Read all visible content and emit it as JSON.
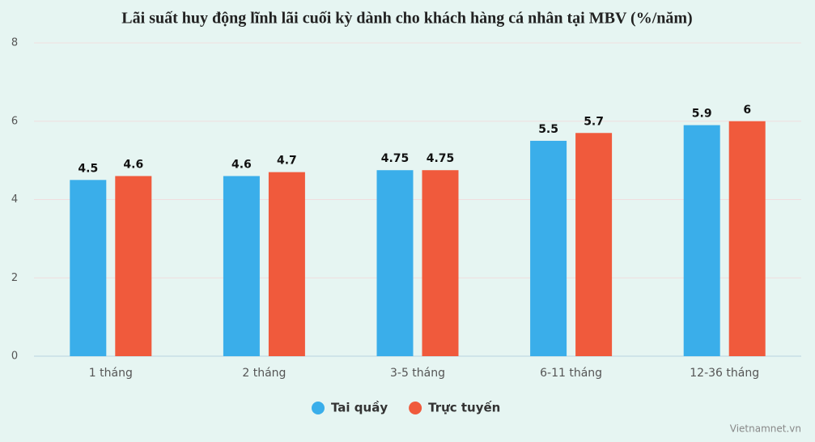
{
  "chart_data": {
    "type": "bar",
    "title": "Lãi suất huy động lĩnh lãi cuối kỳ dành cho khách hàng cá nhân tại MBV (%/năm)",
    "categories": [
      "1 tháng",
      "2 tháng",
      "3-5 tháng",
      "6-11 tháng",
      "12-36 tháng"
    ],
    "series": [
      {
        "name": "Tai quầy",
        "color": "#3aaeea",
        "values": [
          4.5,
          4.6,
          4.75,
          5.5,
          5.9
        ]
      },
      {
        "name": "Trực tuyến",
        "color": "#f05a3c",
        "values": [
          4.6,
          4.7,
          4.75,
          5.7,
          6
        ]
      }
    ],
    "ylim": [
      0,
      8
    ],
    "yticks": [
      0,
      2,
      4,
      6,
      8
    ],
    "grid": true,
    "legend": "bottom",
    "watermark": "Vietnamnet.vn"
  }
}
